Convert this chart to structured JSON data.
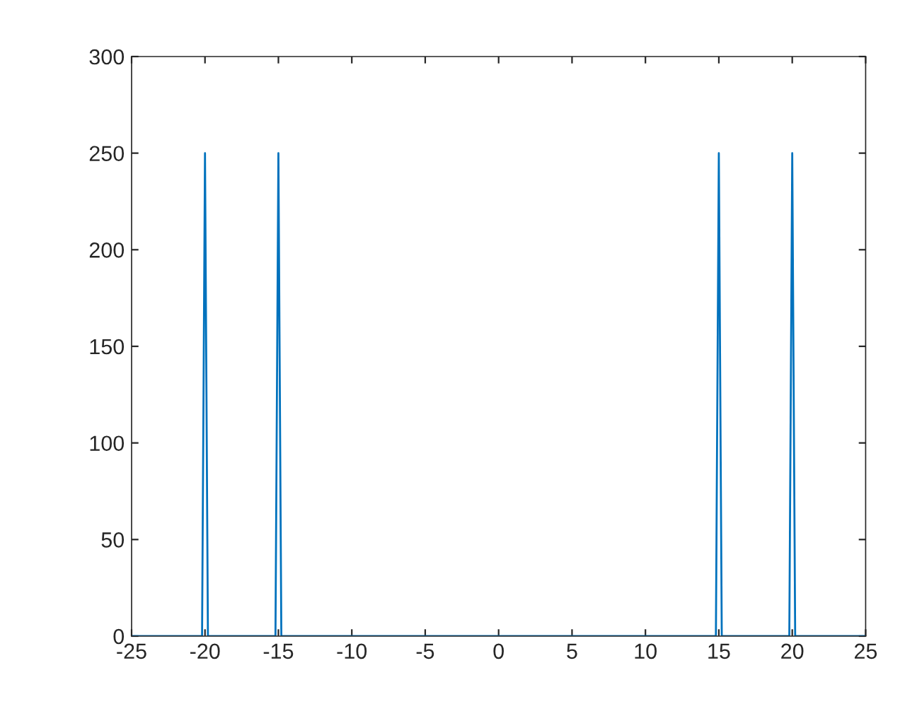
{
  "chart_data": {
    "type": "line",
    "series": [
      {
        "color": "#0072bd",
        "x": [
          -25,
          -20.2,
          -20,
          -19.8,
          -15.2,
          -15,
          -14.8,
          14.8,
          15,
          15.2,
          19.8,
          20,
          20.2,
          25
        ],
        "values": [
          0,
          0,
          250,
          0,
          0,
          250,
          0,
          0,
          250,
          0,
          0,
          250,
          0,
          0
        ]
      }
    ],
    "xlim": [
      -25,
      25
    ],
    "xticks": [
      -25,
      -20,
      -15,
      -10,
      -5,
      0,
      5,
      10,
      15,
      20,
      25
    ],
    "ylim": [
      0,
      300
    ],
    "yticks": [
      0,
      50,
      100,
      150,
      200,
      250,
      300
    ],
    "grid": false,
    "legend": false,
    "marker": "none",
    "line_style": "solid"
  }
}
